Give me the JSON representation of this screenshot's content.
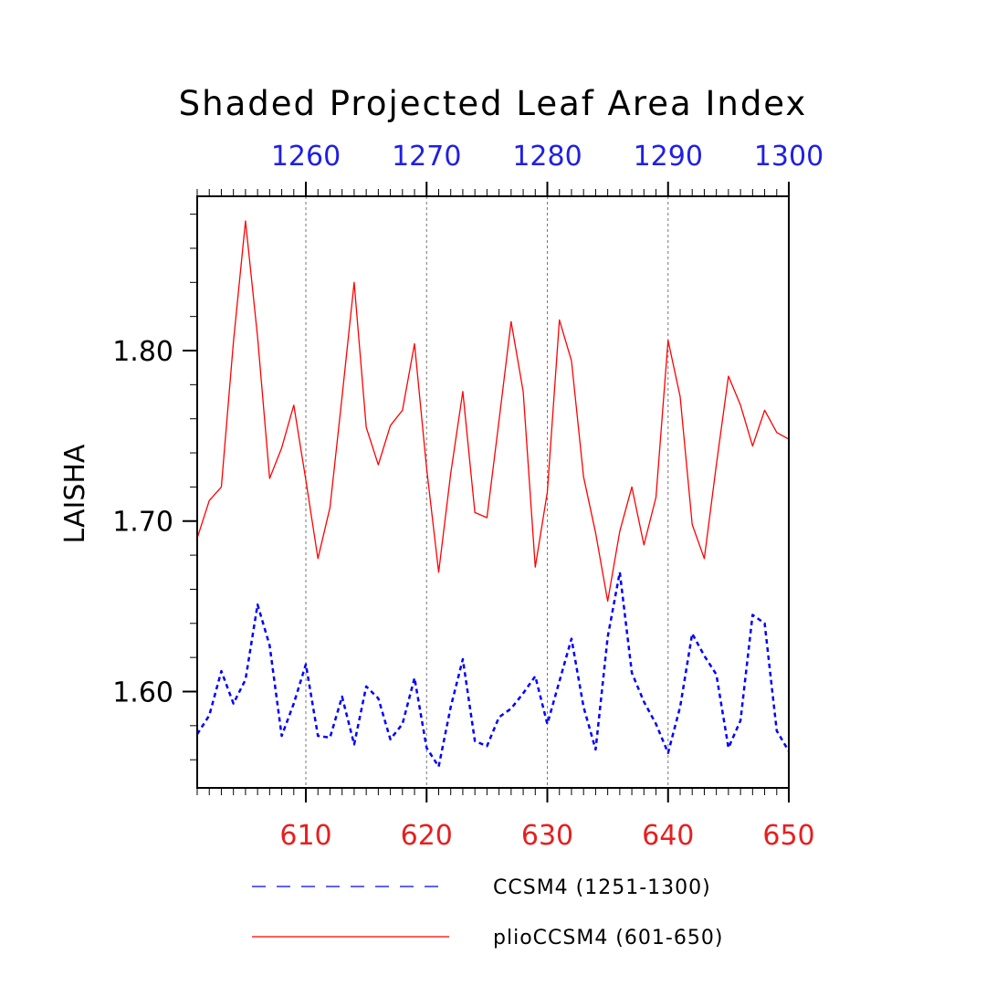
{
  "chart_data": {
    "type": "line",
    "title": "Shaded Projected Leaf Area Index",
    "ylabel": "LAISHA",
    "xlabel": "",
    "xlim": [
      601,
      650
    ],
    "ylim": [
      1.5435,
      1.8905
    ],
    "top_axis": {
      "offset": 650,
      "ticks": [
        1260,
        1270,
        1280,
        1290,
        1300
      ],
      "labels": [
        "1260",
        "1270",
        "1280",
        "1290",
        "1300"
      ],
      "color": "#1f1fe6"
    },
    "bottom_axis": {
      "ticks": [
        610,
        620,
        630,
        640,
        650
      ],
      "labels": [
        "610",
        "620",
        "630",
        "640",
        "650"
      ],
      "color": "#e61f1f"
    },
    "y_ticks": [
      1.6,
      1.7,
      1.8
    ],
    "y_tick_labels": [
      "1.60",
      "1.70",
      "1.80"
    ],
    "grid": "vertical dashed at major ticks",
    "legend_position": "bottom",
    "x": [
      601,
      602,
      603,
      604,
      605,
      606,
      607,
      608,
      609,
      610,
      611,
      612,
      613,
      614,
      615,
      616,
      617,
      618,
      619,
      620,
      621,
      622,
      623,
      624,
      625,
      626,
      627,
      628,
      629,
      630,
      631,
      632,
      633,
      634,
      635,
      636,
      637,
      638,
      639,
      640,
      641,
      642,
      643,
      644,
      645,
      646,
      647,
      648,
      649,
      650
    ],
    "series": [
      {
        "name": "CCSM4 (1251-1300)",
        "color": "#0000ff",
        "style": "dashed",
        "values": [
          1.575,
          1.586,
          1.612,
          1.593,
          1.607,
          1.651,
          1.627,
          1.574,
          1.593,
          1.616,
          1.574,
          1.573,
          1.597,
          1.569,
          1.603,
          1.596,
          1.572,
          1.581,
          1.608,
          1.567,
          1.556,
          1.591,
          1.619,
          1.571,
          1.568,
          1.585,
          1.59,
          1.599,
          1.609,
          1.581,
          1.606,
          1.631,
          1.591,
          1.566,
          1.632,
          1.67,
          1.611,
          1.594,
          1.581,
          1.564,
          1.591,
          1.634,
          1.621,
          1.61,
          1.567,
          1.583,
          1.645,
          1.64,
          1.577,
          1.565
        ]
      },
      {
        "name": "plioCCSM4 (601-650)",
        "color": "#ff0000",
        "style": "solid",
        "values": [
          1.69,
          1.712,
          1.72,
          1.805,
          1.876,
          1.808,
          1.725,
          1.743,
          1.768,
          1.724,
          1.678,
          1.708,
          1.773,
          1.84,
          1.755,
          1.733,
          1.756,
          1.765,
          1.804,
          1.731,
          1.67,
          1.728,
          1.776,
          1.705,
          1.702,
          1.759,
          1.817,
          1.776,
          1.673,
          1.717,
          1.818,
          1.794,
          1.726,
          1.693,
          1.653,
          1.694,
          1.72,
          1.686,
          1.714,
          1.806,
          1.773,
          1.698,
          1.678,
          1.733,
          1.785,
          1.768,
          1.744,
          1.765,
          1.752,
          1.748
        ]
      }
    ]
  }
}
